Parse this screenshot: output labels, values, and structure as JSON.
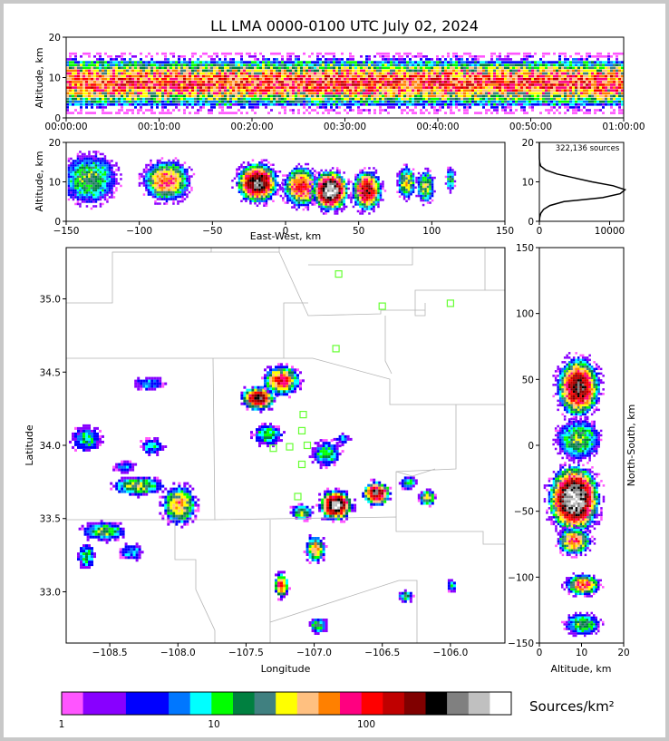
{
  "title": "LL LMA 0000-0100 UTC July 02, 2024",
  "colorbar": {
    "label": "Sources/km²",
    "tick_labels": [
      "1",
      "10",
      "100"
    ],
    "colors": [
      "#ff55ff",
      "#8800ff",
      "#8800ff",
      "#0000ff",
      "#0000ff",
      "#0077ff",
      "#00ffff",
      "#00ff00",
      "#008040",
      "#408080",
      "#ffff00",
      "#ffc080",
      "#ff8000",
      "#ff0080",
      "#ff0000",
      "#c00000",
      "#800000",
      "#000000",
      "#808080",
      "#c0c0c0",
      "#ffffff"
    ]
  },
  "chart_data": [
    {
      "id": "time-altitude",
      "type": "heatmap",
      "ylabel": "Altitude, km",
      "ylim": [
        0,
        20
      ],
      "yticks": [
        "0",
        "10",
        "20"
      ],
      "xticks": [
        "00:00:00",
        "00:10:00",
        "00:20:00",
        "00:30:00",
        "00:40:00",
        "00:50:00",
        "01:00:00"
      ],
      "xlim": [
        "00:00:00",
        "01:00:00"
      ],
      "core_altitude_km": [
        6,
        12
      ]
    },
    {
      "id": "ew-altitude",
      "type": "heatmap",
      "xlabel": "East-West, km",
      "ylabel": "Altitude, km",
      "xlim": [
        -150,
        150
      ],
      "ylim": [
        0,
        20
      ],
      "xticks": [
        "−150",
        "−100",
        "−50",
        "0",
        "50",
        "100",
        "150"
      ],
      "yticks": [
        "0",
        "10",
        "20"
      ],
      "cells": [
        {
          "x": -135,
          "z": 11,
          "rx": 18,
          "rz": 6,
          "peak": 9
        },
        {
          "x": -82,
          "z": 10.5,
          "rx": 16,
          "rz": 5,
          "peak": 13
        },
        {
          "x": -20,
          "z": 10,
          "rx": 14,
          "rz": 5,
          "peak": 18
        },
        {
          "x": 10,
          "z": 9,
          "rx": 12,
          "rz": 5,
          "peak": 14
        },
        {
          "x": 30,
          "z": 8,
          "rx": 12,
          "rz": 5,
          "peak": 20
        },
        {
          "x": 55,
          "z": 8,
          "rx": 10,
          "rz": 5,
          "peak": 16
        },
        {
          "x": 82,
          "z": 10,
          "rx": 6,
          "rz": 4,
          "peak": 11
        },
        {
          "x": 95,
          "z": 9,
          "rx": 6,
          "rz": 4,
          "peak": 10
        },
        {
          "x": 112,
          "z": 11,
          "rx": 3,
          "rz": 3,
          "peak": 8
        }
      ]
    },
    {
      "id": "altitude-histogram",
      "type": "line",
      "annotation": "322,136 sources",
      "xlim": [
        0,
        12000
      ],
      "ylim": [
        0,
        20
      ],
      "xticks": [
        "0",
        "10000"
      ],
      "yticks": [
        "0",
        "10",
        "20"
      ],
      "altitude_km": [
        0,
        1,
        2,
        3,
        4,
        5,
        6,
        7,
        8,
        9,
        10,
        11,
        12,
        13,
        14,
        15,
        16,
        20
      ],
      "source_count": [
        0,
        50,
        200,
        600,
        1500,
        3500,
        9000,
        11500,
        12200,
        10500,
        7500,
        5000,
        2500,
        900,
        200,
        40,
        0,
        0
      ]
    },
    {
      "id": "plan-view",
      "type": "heatmap",
      "xlabel": "Longitude",
      "ylabel": "Latitude",
      "xlim": [
        -108.82,
        -105.6
      ],
      "ylim": [
        32.65,
        35.35
      ],
      "xticks": [
        "−108.5",
        "−108.0",
        "−107.5",
        "−107.0",
        "−106.5",
        "−106.0"
      ],
      "yticks": [
        "33.0",
        "33.5",
        "34.0",
        "34.5",
        "35.0"
      ],
      "cells": [
        {
          "lon": -108.68,
          "lat": 34.05,
          "rlon": 0.1,
          "rlat": 0.08,
          "peak": 7
        },
        {
          "lon": -108.22,
          "lat": 34.43,
          "rlon": 0.1,
          "rlat": 0.04,
          "peak": 6
        },
        {
          "lon": -108.4,
          "lat": 33.86,
          "rlon": 0.07,
          "rlat": 0.04,
          "peak": 5
        },
        {
          "lon": -108.2,
          "lat": 34.0,
          "rlon": 0.08,
          "rlat": 0.05,
          "peak": 6
        },
        {
          "lon": -108.3,
          "lat": 33.73,
          "rlon": 0.18,
          "rlat": 0.06,
          "peak": 10
        },
        {
          "lon": -108.0,
          "lat": 33.6,
          "rlon": 0.12,
          "rlat": 0.13,
          "peak": 12
        },
        {
          "lon": -108.55,
          "lat": 33.42,
          "rlon": 0.15,
          "rlat": 0.06,
          "peak": 9
        },
        {
          "lon": -108.68,
          "lat": 33.25,
          "rlon": 0.06,
          "rlat": 0.08,
          "peak": 8
        },
        {
          "lon": -108.35,
          "lat": 33.28,
          "rlon": 0.08,
          "rlat": 0.05,
          "peak": 6
        },
        {
          "lon": -107.42,
          "lat": 34.33,
          "rlon": 0.12,
          "rlat": 0.08,
          "peak": 17
        },
        {
          "lon": -107.25,
          "lat": 34.45,
          "rlon": 0.13,
          "rlat": 0.1,
          "peak": 14
        },
        {
          "lon": -107.35,
          "lat": 34.08,
          "rlon": 0.1,
          "rlat": 0.07,
          "peak": 8
        },
        {
          "lon": -106.92,
          "lat": 33.95,
          "rlon": 0.1,
          "rlat": 0.08,
          "peak": 8
        },
        {
          "lon": -106.85,
          "lat": 33.6,
          "rlon": 0.12,
          "rlat": 0.1,
          "peak": 19
        },
        {
          "lon": -107.1,
          "lat": 33.55,
          "rlon": 0.08,
          "rlat": 0.05,
          "peak": 10
        },
        {
          "lon": -106.55,
          "lat": 33.68,
          "rlon": 0.1,
          "rlat": 0.08,
          "peak": 17
        },
        {
          "lon": -106.32,
          "lat": 33.75,
          "rlon": 0.06,
          "rlat": 0.04,
          "peak": 8
        },
        {
          "lon": -106.18,
          "lat": 33.65,
          "rlon": 0.06,
          "rlat": 0.05,
          "peak": 11
        },
        {
          "lon": -107.0,
          "lat": 33.3,
          "rlon": 0.07,
          "rlat": 0.09,
          "peak": 12
        },
        {
          "lon": -107.25,
          "lat": 33.05,
          "rlon": 0.05,
          "rlat": 0.08,
          "peak": 14
        },
        {
          "lon": -106.98,
          "lat": 32.78,
          "rlon": 0.06,
          "rlat": 0.05,
          "peak": 9
        },
        {
          "lon": -106.34,
          "lat": 32.98,
          "rlon": 0.05,
          "rlat": 0.04,
          "peak": 8
        },
        {
          "lon": -106.0,
          "lat": 33.05,
          "rlon": 0.03,
          "rlat": 0.04,
          "peak": 7
        },
        {
          "lon": -106.8,
          "lat": 34.05,
          "rlon": 0.05,
          "rlat": 0.03,
          "peak": 6
        }
      ],
      "stations": [
        {
          "lon": -106.82,
          "lat": 35.17
        },
        {
          "lon": -106.5,
          "lat": 34.95
        },
        {
          "lon": -106.0,
          "lat": 34.97
        },
        {
          "lon": -106.84,
          "lat": 34.66
        },
        {
          "lon": -107.08,
          "lat": 34.21
        },
        {
          "lon": -107.09,
          "lat": 34.1
        },
        {
          "lon": -107.3,
          "lat": 33.98
        },
        {
          "lon": -107.18,
          "lat": 33.99
        },
        {
          "lon": -107.05,
          "lat": 34.0
        },
        {
          "lon": -107.09,
          "lat": 33.87
        },
        {
          "lon": -107.12,
          "lat": 33.65
        }
      ]
    },
    {
      "id": "ns-altitude",
      "type": "heatmap",
      "xlabel": "Altitude, km",
      "ylabel": "North-South, km",
      "xlim": [
        0,
        20
      ],
      "ylim": [
        -150,
        150
      ],
      "xticks": [
        "0",
        "10",
        "20"
      ],
      "yticks": [
        "−150",
        "−100",
        "−50",
        "0",
        "50",
        "100",
        "150"
      ],
      "cells": [
        {
          "z": 9,
          "y": 45,
          "rz": 5,
          "ry": 22,
          "peak": 17
        },
        {
          "z": 9,
          "y": 5,
          "rz": 5,
          "ry": 15,
          "peak": 9
        },
        {
          "z": 8,
          "y": -40,
          "rz": 6,
          "ry": 25,
          "peak": 20
        },
        {
          "z": 8,
          "y": -72,
          "rz": 4,
          "ry": 10,
          "peak": 13
        },
        {
          "z": 10,
          "y": -105,
          "rz": 4,
          "ry": 8,
          "peak": 13
        },
        {
          "z": 10,
          "y": -135,
          "rz": 4,
          "ry": 8,
          "peak": 9
        }
      ]
    }
  ]
}
